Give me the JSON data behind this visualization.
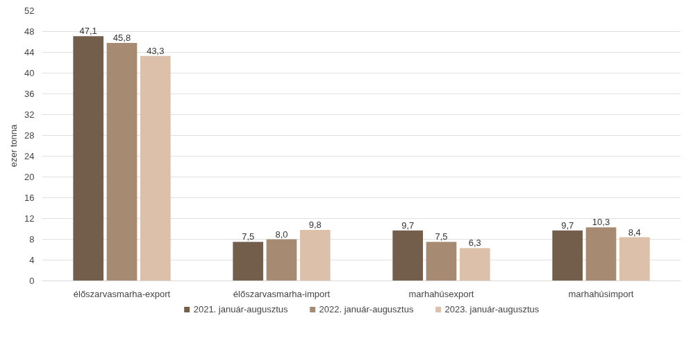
{
  "chart_data": {
    "type": "bar",
    "ylabel": "ezer tonna",
    "categories": [
      "élőszarvasmarha-export",
      "élőszarvasmarha-import",
      "marhahúsexport",
      "marhahúsimport"
    ],
    "series": [
      {
        "name": "2021. január-augusztus",
        "color": "#735e4c",
        "values": [
          47.1,
          7.5,
          9.7,
          9.7
        ],
        "value_labels": [
          "47,1",
          "7,5",
          "9,7",
          "9,7"
        ]
      },
      {
        "name": "2022. január-augusztus",
        "color": "#a68a71",
        "values": [
          45.8,
          8.0,
          7.5,
          10.3
        ],
        "value_labels": [
          "45,8",
          "8,0",
          "7,5",
          "10,3"
        ]
      },
      {
        "name": "2023. január-augusztus",
        "color": "#dcc0a9",
        "values": [
          43.3,
          9.8,
          6.3,
          8.4
        ],
        "value_labels": [
          "43,3",
          "9,8",
          "6,3",
          "8,4"
        ]
      }
    ],
    "ylim": [
      0,
      52
    ],
    "yticks": [
      0,
      4,
      8,
      12,
      16,
      20,
      24,
      28,
      32,
      36,
      40,
      44,
      48,
      52
    ],
    "grid": "y",
    "legend": "bottom"
  }
}
